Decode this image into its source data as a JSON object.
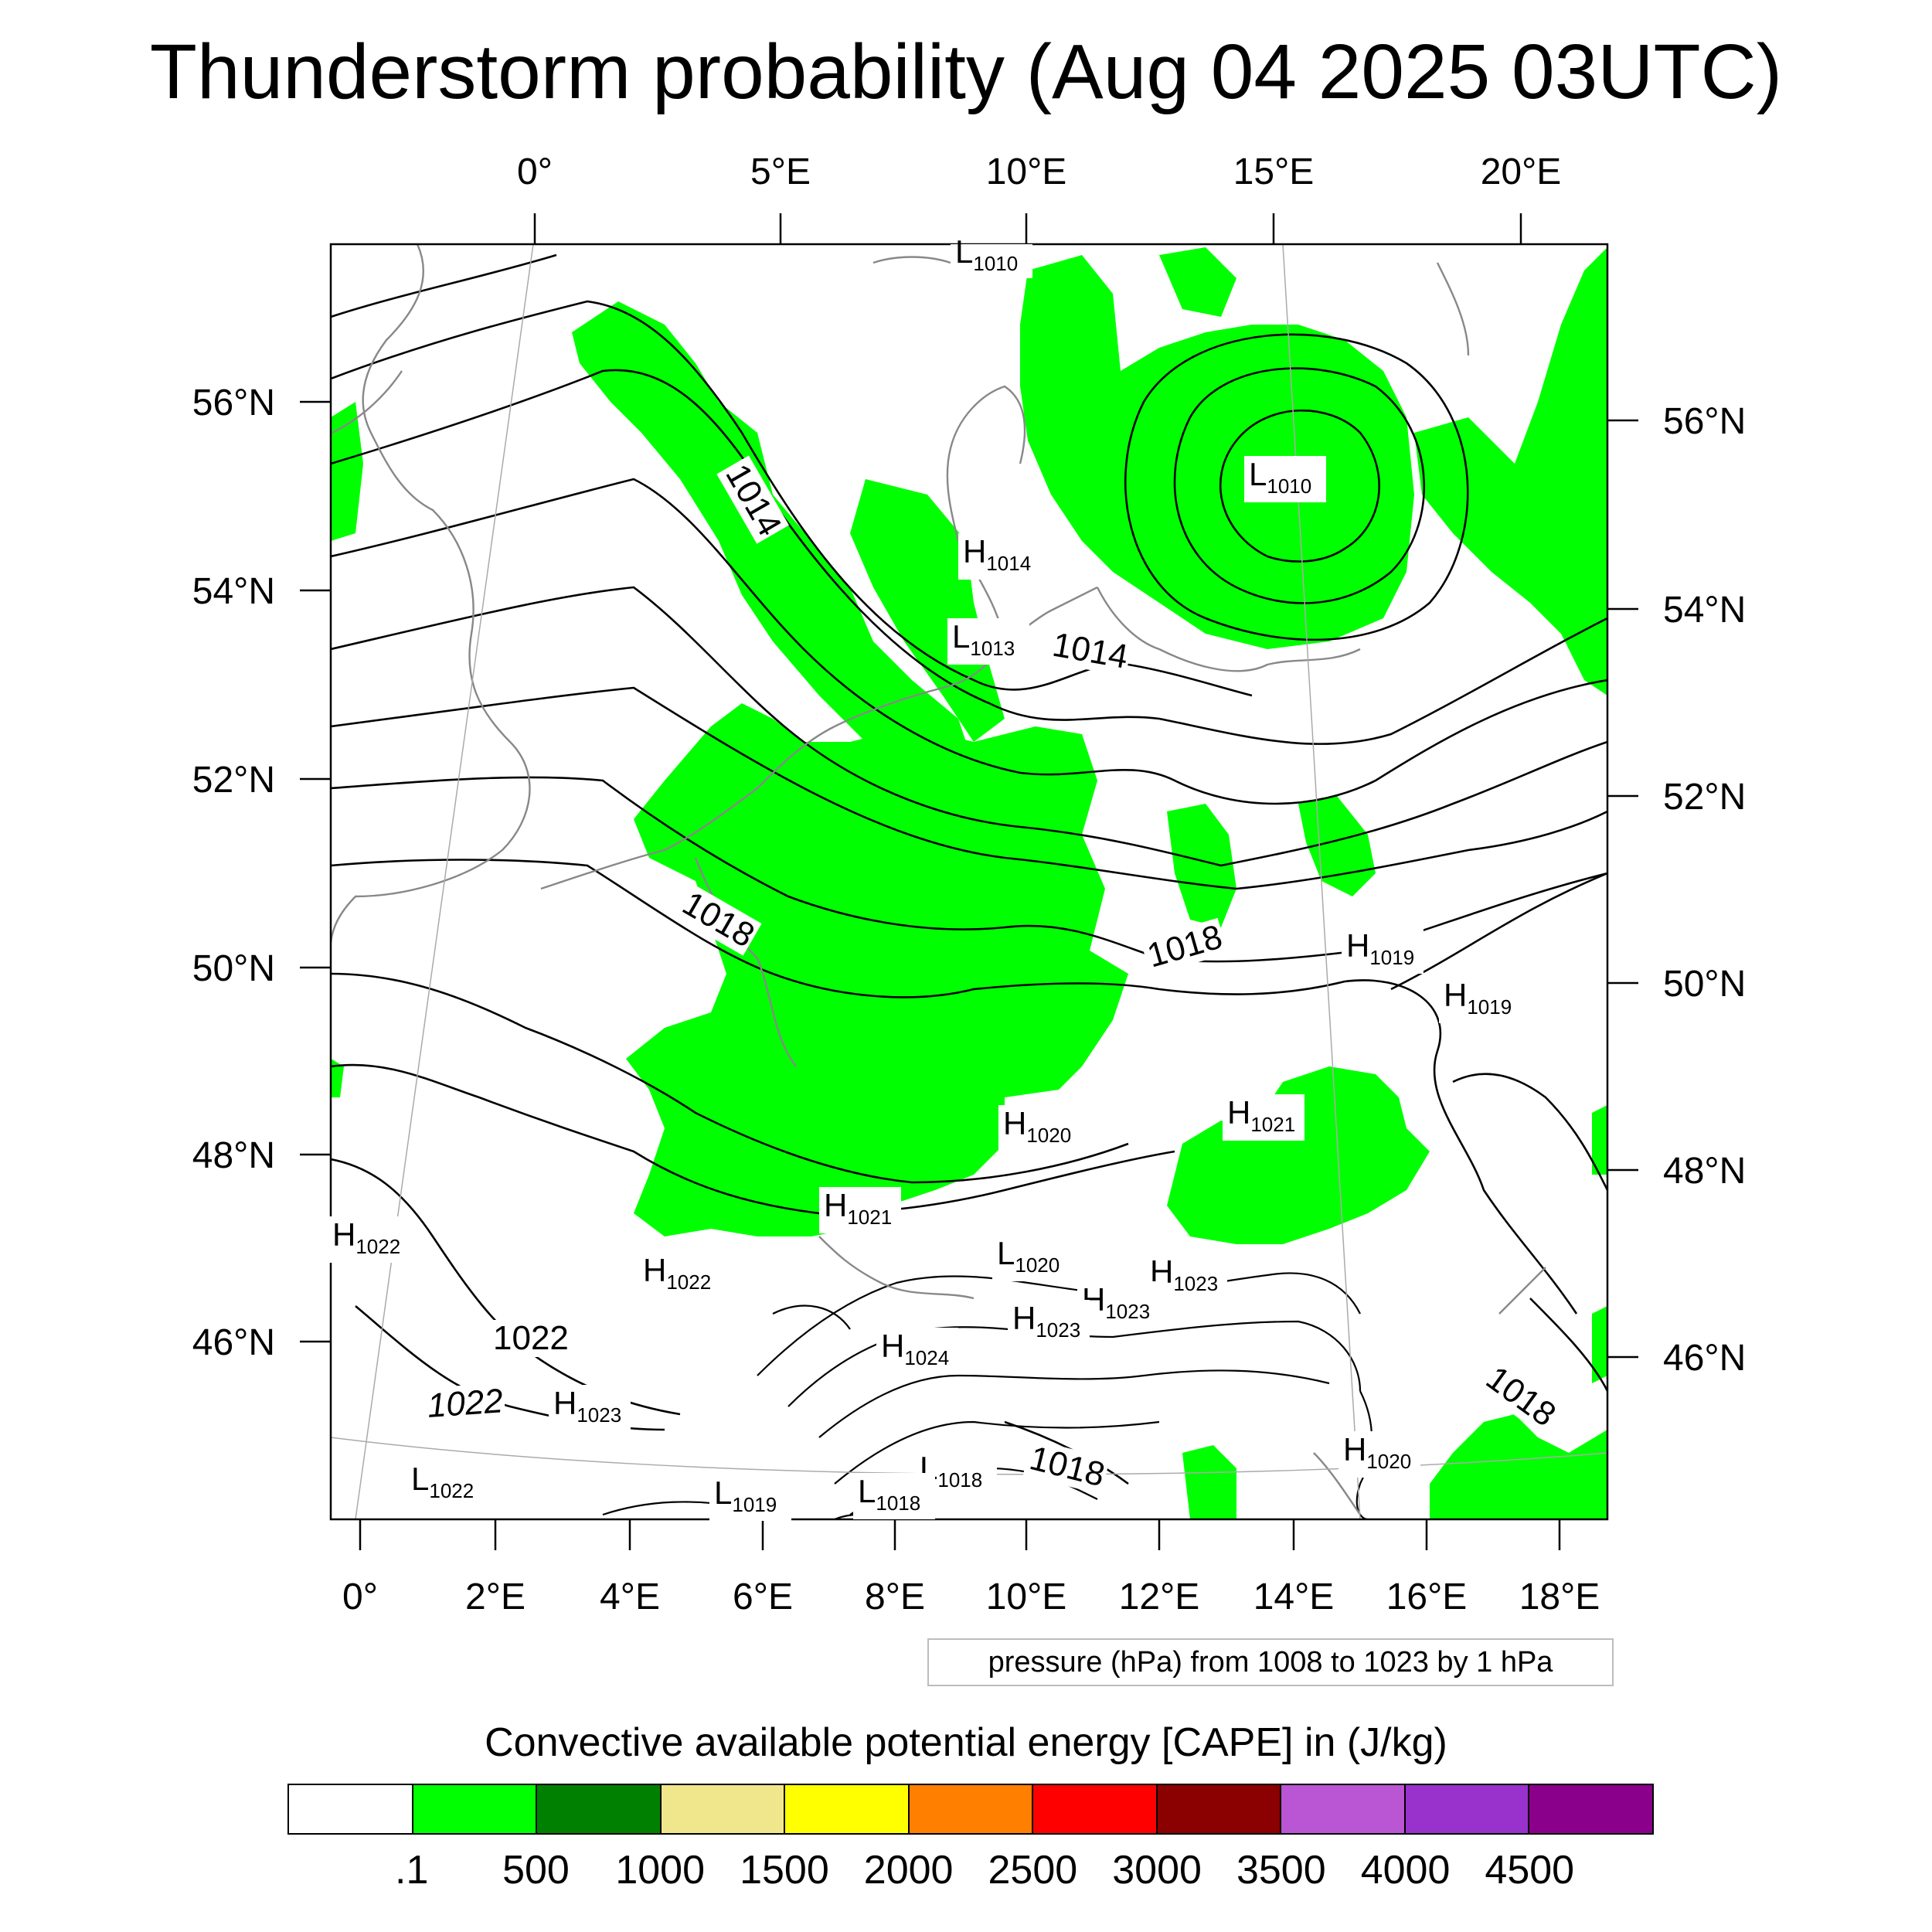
{
  "title": "Thunderstorm probability (Aug 04 2025 03UTC)",
  "top_lon_ticks": [
    "0°",
    "5°E",
    "10°E",
    "15°E",
    "20°E"
  ],
  "bottom_lon_ticks": [
    "0°",
    "2°E",
    "4°E",
    "6°E",
    "8°E",
    "10°E",
    "12°E",
    "14°E",
    "16°E",
    "18°E"
  ],
  "left_lat_ticks": [
    "56°N",
    "54°N",
    "52°N",
    "50°N",
    "48°N",
    "46°N"
  ],
  "right_lat_ticks": [
    "56°N",
    "54°N",
    "52°N",
    "50°N",
    "48°N",
    "46°N"
  ],
  "pressure_centers": [
    {
      "type": "L",
      "value": "1010"
    },
    {
      "type": "L",
      "value": "1010"
    },
    {
      "type": "H",
      "value": "1014"
    },
    {
      "type": "L",
      "value": "1013"
    },
    {
      "type": "H",
      "value": "1019"
    },
    {
      "type": "H",
      "value": "1019"
    },
    {
      "type": "H",
      "value": "1021"
    },
    {
      "type": "H",
      "value": "1020"
    },
    {
      "type": "H",
      "value": "1021"
    },
    {
      "type": "L",
      "value": "1020"
    },
    {
      "type": "H",
      "value": "1023"
    },
    {
      "type": "H",
      "value": "1023"
    },
    {
      "type": "H",
      "value": "1023"
    },
    {
      "type": "H",
      "value": "1022"
    },
    {
      "type": "H",
      "value": "1022"
    },
    {
      "type": "H",
      "value": "1024"
    },
    {
      "type": "H",
      "value": "1023"
    },
    {
      "type": "L",
      "value": "1022"
    },
    {
      "type": "L",
      "value": "1019"
    },
    {
      "type": "L",
      "value": "1018"
    },
    {
      "type": "L",
      "value": "1018"
    },
    {
      "type": "H",
      "value": "1020"
    }
  ],
  "isobar_labels": [
    "1014",
    "1014",
    "1018",
    "1018",
    "1022",
    "1022",
    "1018",
    "1018"
  ],
  "pressure_note": "pressure (hPa) from 1008 to 1023 by 1 hPa",
  "colorbar": {
    "title": "Convective available potential energy [CAPE] in (J/kg)",
    "labels": [
      ".1",
      "500",
      "1000",
      "1500",
      "2000",
      "2500",
      "3000",
      "3500",
      "4000",
      "4500"
    ],
    "colors": [
      "#ffffff",
      "#00ff00",
      "#008000",
      "#f0e68c",
      "#ffff00",
      "#ff8000",
      "#ff0000",
      "#8b0000",
      "#ba55d3",
      "#9932cc",
      "#8b008b"
    ]
  }
}
